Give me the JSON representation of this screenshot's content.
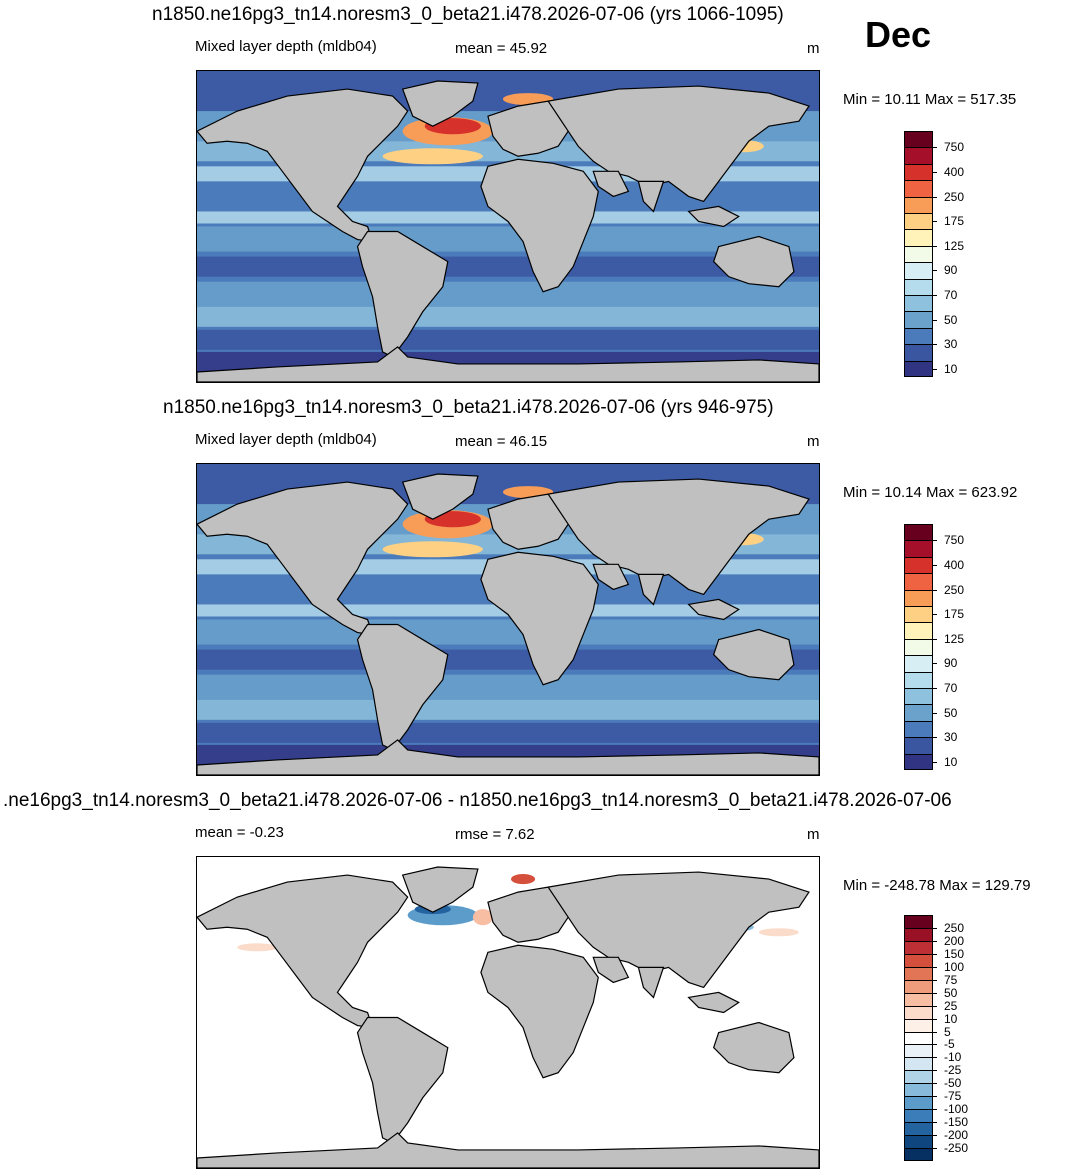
{
  "month": "Dec",
  "panels": [
    {
      "title": "n1850.ne16pg3_tn14.noresm3_0_beta21.i478.2026-07-06 (yrs 1066-1095)",
      "left_label": "Mixed layer depth (mldb04)",
      "center_label": "mean =  45.92",
      "units": "m",
      "minmax": "Min =  10.11 Max = 517.35",
      "colorbar_ticks": [
        "750",
        "400",
        "250",
        "175",
        "125",
        "90",
        "70",
        "50",
        "30",
        "10"
      ],
      "colorbar_colors": [
        "#67001f",
        "#a50f2a",
        "#d6312a",
        "#ef6343",
        "#f89d58",
        "#fdd083",
        "#fff3ba",
        "#f2fbe8",
        "#d7eef5",
        "#b4dcec",
        "#8ec1dd",
        "#6aa2cc",
        "#4b7bba",
        "#3a56a0",
        "#303483"
      ],
      "map_type": "full"
    },
    {
      "title": "n1850.ne16pg3_tn14.noresm3_0_beta21.i478.2026-07-06 (yrs 946-975)",
      "left_label": "Mixed layer depth (mldb04)",
      "center_label": "mean =  46.15",
      "units": "m",
      "minmax": "Min =  10.14 Max = 623.92",
      "colorbar_ticks": [
        "750",
        "400",
        "250",
        "175",
        "125",
        "90",
        "70",
        "50",
        "30",
        "10"
      ],
      "colorbar_colors": [
        "#67001f",
        "#a50f2a",
        "#d6312a",
        "#ef6343",
        "#f89d58",
        "#fdd083",
        "#fff3ba",
        "#f2fbe8",
        "#d7eef5",
        "#b4dcec",
        "#8ec1dd",
        "#6aa2cc",
        "#4b7bba",
        "#3a56a0",
        "#303483"
      ],
      "map_type": "full"
    },
    {
      "title": ".ne16pg3_tn14.noresm3_0_beta21.i478.2026-07-06 - n1850.ne16pg3_tn14.noresm3_0_beta21.i478.2026-07-06",
      "left_label": "mean =  -0.23",
      "center_label": "rmse =   7.62",
      "units": "m",
      "minmax": "Min = -248.78 Max = 129.79",
      "colorbar_ticks": [
        "250",
        "200",
        "150",
        "100",
        "75",
        "50",
        "25",
        "10",
        "5",
        "-5",
        "-10",
        "-25",
        "-50",
        "-75",
        "-100",
        "-150",
        "-200",
        "-250"
      ],
      "colorbar_colors": [
        "#67001f",
        "#9a1025",
        "#bd2e35",
        "#d4503c",
        "#e27555",
        "#ef9c7c",
        "#f7bea3",
        "#fbdccb",
        "#fdf0e6",
        "#ffffff",
        "#eaf2f8",
        "#d4e6f1",
        "#b1d3e8",
        "#88bbdb",
        "#5b9ccb",
        "#3b7db9",
        "#2263a0",
        "#10467f",
        "#053061"
      ],
      "map_type": "diff"
    }
  ]
}
